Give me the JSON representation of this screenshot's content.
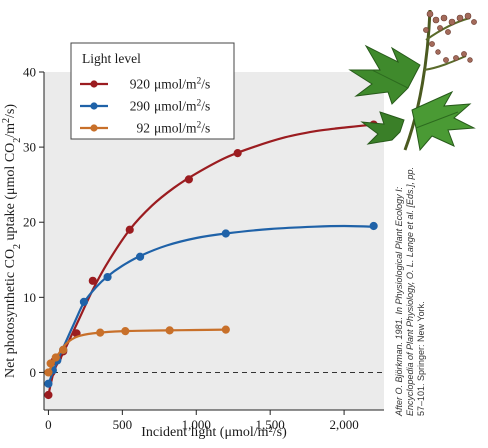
{
  "chart_data": {
    "type": "line",
    "xlabel": "Incident light (μmol/m²/s)",
    "ylabel_parts": [
      "Net photosynthetic CO",
      "2",
      " uptake (μmol CO",
      "2",
      "/m",
      "2",
      "/s)"
    ],
    "xlim": [
      -30,
      2270
    ],
    "ylim": [
      -5,
      40
    ],
    "x_ticks": [
      0,
      500,
      1000,
      1500,
      2000
    ],
    "x_tick_labels": [
      "0",
      "500",
      "1,000",
      "1,500",
      "2,000"
    ],
    "y_ticks": [
      0,
      10,
      20,
      30,
      40
    ],
    "y_tick_labels": [
      "0",
      "10",
      "20",
      "30",
      "40"
    ],
    "zero_line": "dashed",
    "legend": {
      "title": "Light level",
      "placement": "top-left"
    },
    "series": [
      {
        "name_value": "920",
        "name_unit": "μmol/m",
        "name_exp": "2",
        "name_tail": "/s",
        "color": "#9b1c20",
        "points": [
          [
            0,
            -3
          ],
          [
            20,
            0
          ],
          [
            40,
            1.5
          ],
          [
            65,
            2
          ],
          [
            100,
            2.8
          ],
          [
            190,
            5.2
          ],
          [
            300,
            12.2
          ],
          [
            550,
            19
          ],
          [
            950,
            25.7
          ],
          [
            1280,
            29.2
          ],
          [
            2200,
            33
          ]
        ],
        "curve": [
          [
            0,
            -3
          ],
          [
            40,
            0.3
          ],
          [
            100,
            2.6
          ],
          [
            200,
            6.8
          ],
          [
            300,
            11
          ],
          [
            400,
            14.6
          ],
          [
            550,
            19
          ],
          [
            700,
            22.2
          ],
          [
            850,
            24.6
          ],
          [
            1000,
            26.5
          ],
          [
            1200,
            28.6
          ],
          [
            1400,
            30.1
          ],
          [
            1600,
            31.3
          ],
          [
            1800,
            32.1
          ],
          [
            2000,
            32.6
          ],
          [
            2200,
            33
          ]
        ]
      },
      {
        "name_value": "290",
        "name_unit": "μmol/m",
        "name_exp": "2",
        "name_tail": "/s",
        "color": "#1f62a8",
        "points": [
          [
            0,
            -1.5
          ],
          [
            30,
            0.3
          ],
          [
            60,
            1.6
          ],
          [
            100,
            3
          ],
          [
            240,
            9.4
          ],
          [
            400,
            12.7
          ],
          [
            620,
            15.4
          ],
          [
            1200,
            18.5
          ],
          [
            2200,
            19.5
          ]
        ],
        "curve": [
          [
            0,
            -1.5
          ],
          [
            50,
            1
          ],
          [
            100,
            3.3
          ],
          [
            180,
            6.8
          ],
          [
            240,
            9.3
          ],
          [
            320,
            11.3
          ],
          [
            400,
            12.8
          ],
          [
            500,
            14.2
          ],
          [
            620,
            15.5
          ],
          [
            800,
            16.9
          ],
          [
            1000,
            17.9
          ],
          [
            1200,
            18.5
          ],
          [
            1500,
            19.1
          ],
          [
            1800,
            19.4
          ],
          [
            2000,
            19.5
          ],
          [
            2200,
            19.4
          ]
        ]
      },
      {
        "name_value": "92",
        "name_unit": "μmol/m",
        "name_exp": "2",
        "name_tail": "/s",
        "color": "#c8702a",
        "points": [
          [
            0,
            0
          ],
          [
            15,
            1.2
          ],
          [
            50,
            2
          ],
          [
            100,
            3
          ],
          [
            350,
            5.3
          ],
          [
            520,
            5.5
          ],
          [
            820,
            5.6
          ],
          [
            1200,
            5.7
          ]
        ],
        "curve": [
          [
            0,
            0
          ],
          [
            40,
            1.5
          ],
          [
            80,
            2.8
          ],
          [
            130,
            4
          ],
          [
            200,
            4.8
          ],
          [
            300,
            5.2
          ],
          [
            450,
            5.45
          ],
          [
            600,
            5.55
          ],
          [
            800,
            5.6
          ],
          [
            1000,
            5.65
          ],
          [
            1200,
            5.7
          ]
        ]
      }
    ]
  },
  "credit": {
    "lines": [
      "After O. Björkman. 1981. In Physiological Plant Ecology I:",
      "Encyclopedia of Plant Physiology, O. L. Lange et al. [Eds.], pp.",
      "57–101. Springer: New York."
    ]
  },
  "illustration": {
    "icon": "plant-sprig-illustration"
  }
}
